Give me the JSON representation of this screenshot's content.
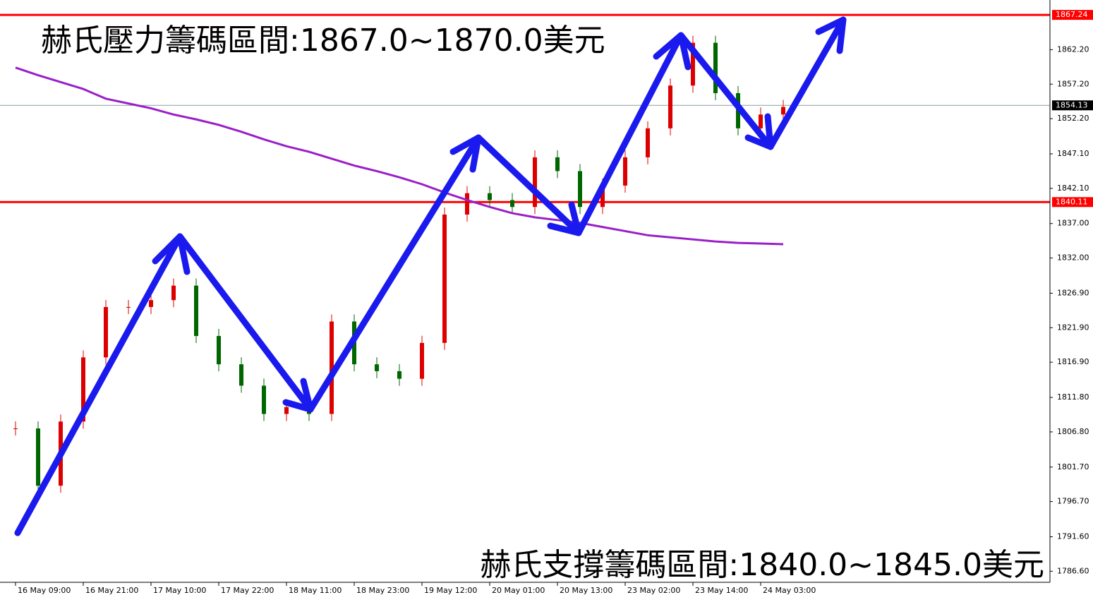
{
  "chart_data": {
    "type": "candlestick",
    "annotations": [
      "赫氏壓力籌碼區間:1867.0~1870.0美元",
      "赫氏支撐籌碼區間:1840.0~1845.0美元"
    ],
    "categories": [
      "16 May 09:00",
      null,
      null,
      "16 May 21:00",
      null,
      null,
      "17 May 10:00",
      null,
      null,
      "17 May 22:00",
      null,
      null,
      "18 May 11:00",
      null,
      null,
      "18 May 23:00",
      null,
      null,
      "19 May 12:00",
      null,
      null,
      "20 May 01:00",
      null,
      null,
      "20 May 13:00",
      null,
      null,
      "23 May 02:00",
      null,
      null,
      "23 May 14:00",
      null,
      null,
      "24 May 03:00",
      null
    ],
    "series": [
      {
        "color": "#cc0000",
        "values": [
          1807.3,
          1799.0,
          1808.3,
          1817.6,
          1824.9,
          1824.9,
          1825.9,
          1828.0,
          1820.7,
          1816.6,
          1813.5,
          1809.4,
          1810.4,
          1809.4,
          1822.8,
          1816.6,
          1815.6,
          1814.5,
          1819.7,
          1838.3,
          1841.4,
          1840.4,
          1839.4,
          1846.6,
          1844.6,
          1839.4,
          1842.5,
          1846.6,
          1850.8,
          1857.0,
          1863.2,
          1855.9,
          1850.8,
          1852.8,
          1853.9
        ]
      },
      {
        "color": "#9a1fc8",
        "values": [
          1859.6,
          1858.5,
          1857.5,
          1856.5,
          1855.1,
          1854.4,
          1853.7,
          1852.8,
          1852.1,
          1851.3,
          1850.3,
          1849.2,
          1848.2,
          1847.4,
          1846.4,
          1845.4,
          1844.6,
          1843.7,
          1842.7,
          1841.5,
          1840.4,
          1839.4,
          1838.5,
          1837.9,
          1837.5,
          1837.1,
          1836.5,
          1835.9,
          1835.3,
          1835.0,
          1834.7,
          1834.4,
          1834.2,
          1834.1,
          1834.0
        ]
      }
    ],
    "ylim": [
      1785.0,
      1869.4
    ],
    "yticks": [
      {
        "value": 1862.2,
        "label": "1862.20"
      },
      {
        "value": 1857.2,
        "label": "1857.20"
      },
      {
        "value": 1852.2,
        "label": "1852.20"
      },
      {
        "value": 1847.1,
        "label": "1847.10"
      },
      {
        "value": 1842.1,
        "label": "1842.10"
      },
      1837,
      {
        "value": 1837.0,
        "label": "1837.00"
      },
      {
        "value": 1832.0,
        "label": "1832.00"
      },
      {
        "value": 1826.9,
        "label": "1826.90"
      },
      {
        "value": 1821.9,
        "label": "1821.90"
      },
      {
        "value": 1816.9,
        "label": "1816.90"
      },
      {
        "value": 1811.8,
        "label": "1811.80"
      },
      {
        "value": 1806.8,
        "label": "1806.80"
      },
      {
        "value": 1801.7,
        "label": "1801.70"
      },
      {
        "value": 1796.7,
        "label": "1796.70"
      },
      {
        "value": 1791.6,
        "label": "1791.60"
      },
      {
        "value": 1786.6,
        "label": "1786.60"
      }
    ],
    "price_lines": [
      {
        "value": 1867.24,
        "color": "#ff0000"
      },
      {
        "value": 1854.13,
        "color": "#000000"
      },
      {
        "value": 1840.11,
        "color": "#ff0000"
      }
    ],
    "up_color": "#dd0000",
    "down_color": "#006600"
  }
}
